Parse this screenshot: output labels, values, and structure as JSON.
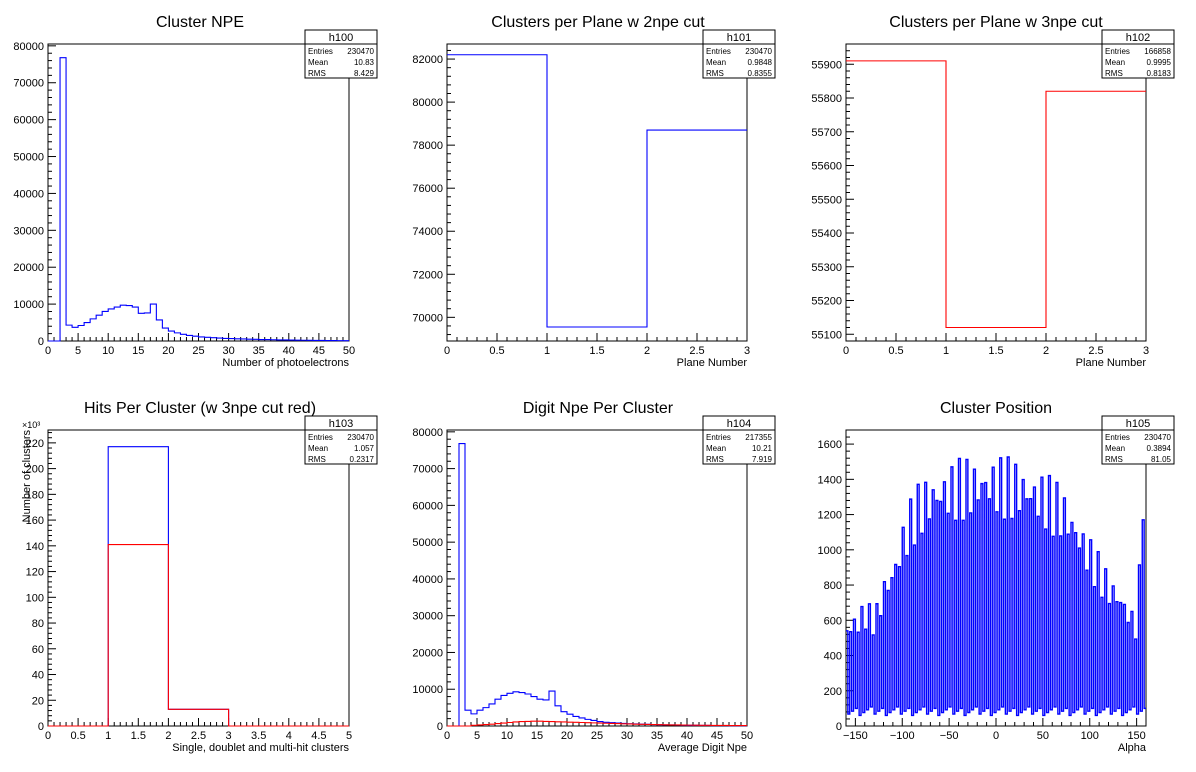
{
  "chart_data": [
    {
      "type": "histogram",
      "title": "Cluster NPE",
      "stats": {
        "name": "h100",
        "entries": "230470",
        "mean": "10.83",
        "rms": "8.429"
      },
      "stat_labels": {
        "entries": "Entries",
        "mean": "Mean",
        "rms": "RMS"
      },
      "xlabel": "Number of photoelectrons",
      "ylabel": "",
      "xlim": [
        0,
        50
      ],
      "ylim": [
        0,
        80500
      ],
      "xticks": [
        0,
        5,
        10,
        15,
        20,
        25,
        30,
        35,
        40,
        45,
        50
      ],
      "yticks": [
        0,
        10000,
        20000,
        30000,
        40000,
        50000,
        60000,
        70000,
        80000
      ],
      "ytick_labels": [
        "0",
        "10000",
        "20000",
        "30000",
        "40000",
        "50000",
        "60000",
        "70000",
        "80000"
      ],
      "ymult": "",
      "series": [
        {
          "color": "#0000ff",
          "bin_edges_start": 2,
          "bin_width": 1,
          "values": [
            76800,
            4300,
            3700,
            4200,
            5000,
            6000,
            7000,
            8000,
            8700,
            9200,
            9700,
            9600,
            9200,
            7500,
            7600,
            10000,
            5700,
            3500,
            2700,
            2200,
            1800,
            1500,
            1300,
            1100,
            1000,
            900,
            800,
            700,
            650,
            600,
            550,
            500,
            450,
            400,
            380,
            340,
            300,
            280,
            250,
            220,
            200,
            180,
            160,
            140,
            130,
            120,
            100,
            90
          ]
        }
      ]
    },
    {
      "type": "histogram",
      "title": "Clusters per Plane w 2npe cut",
      "stats": {
        "name": "h101",
        "entries": "230470",
        "mean": "0.9848",
        "rms": "0.8355"
      },
      "stat_labels": {
        "entries": "Entries",
        "mean": "Mean",
        "rms": "RMS"
      },
      "xlabel": "Plane Number",
      "ylabel": "",
      "xlim": [
        0,
        3
      ],
      "ylim": [
        68900,
        82700
      ],
      "xticks": [
        0,
        0.5,
        1,
        1.5,
        2,
        2.5,
        3
      ],
      "yticks": [
        70000,
        72000,
        74000,
        76000,
        78000,
        80000,
        82000
      ],
      "ytick_labels": [
        "70000",
        "72000",
        "74000",
        "76000",
        "78000",
        "80000",
        "82000"
      ],
      "ymult": "",
      "series": [
        {
          "color": "#0000ff",
          "bin_edges_start": 0,
          "bin_width": 1,
          "values": [
            82200,
            69550,
            78700
          ]
        }
      ]
    },
    {
      "type": "histogram",
      "title": "Clusters per Plane w 3npe cut",
      "stats": {
        "name": "h102",
        "entries": "166858",
        "mean": "0.9995",
        "rms": "0.8183"
      },
      "stat_labels": {
        "entries": "Entries",
        "mean": "Mean",
        "rms": "RMS"
      },
      "xlabel": "Plane Number",
      "ylabel": "",
      "xlim": [
        0,
        3
      ],
      "ylim": [
        55080,
        55960
      ],
      "xticks": [
        0,
        0.5,
        1,
        1.5,
        2,
        2.5,
        3
      ],
      "yticks": [
        55100,
        55200,
        55300,
        55400,
        55500,
        55600,
        55700,
        55800,
        55900
      ],
      "ytick_labels": [
        "55100",
        "55200",
        "55300",
        "55400",
        "55500",
        "55600",
        "55700",
        "55800",
        "55900"
      ],
      "ymult": "",
      "series": [
        {
          "color": "#ff0000",
          "bin_edges_start": 0,
          "bin_width": 1,
          "values": [
            55910,
            55120,
            55820
          ]
        }
      ]
    },
    {
      "type": "histogram",
      "title": "Hits Per Cluster (w 3npe cut red)",
      "stats": {
        "name": "h103",
        "entries": "230470",
        "mean": "1.057",
        "rms": "0.2317"
      },
      "stat_labels": {
        "entries": "Entries",
        "mean": "Mean",
        "rms": "RMS"
      },
      "xlabel": "Single, doublet and multi-hit clusters",
      "ylabel": "Number of clusters",
      "xlim": [
        0,
        5
      ],
      "ylim": [
        0,
        230
      ],
      "xticks": [
        0,
        0.5,
        1,
        1.5,
        2,
        2.5,
        3,
        3.5,
        4,
        4.5,
        5
      ],
      "yticks": [
        0,
        20,
        40,
        60,
        80,
        100,
        120,
        140,
        160,
        180,
        200,
        220
      ],
      "ytick_labels": [
        "0",
        "20",
        "40",
        "60",
        "80",
        "100",
        "120",
        "140",
        "160",
        "180",
        "200",
        "220"
      ],
      "ymult": "×10³",
      "series": [
        {
          "color": "#0000ff",
          "bin_edges_start": 0,
          "bin_width": 1,
          "values": [
            0,
            217,
            13,
            0,
            0
          ]
        },
        {
          "color": "#ff0000",
          "bin_edges_start": 0,
          "bin_width": 1,
          "values": [
            0,
            141,
            13,
            0,
            0
          ]
        }
      ]
    },
    {
      "type": "histogram",
      "title": "Digit Npe Per Cluster",
      "stats": {
        "name": "h104",
        "entries": "217355",
        "mean": "10.21",
        "rms": "7.919"
      },
      "stat_labels": {
        "entries": "Entries",
        "mean": "Mean",
        "rms": "RMS"
      },
      "xlabel": "Average Digit Npe",
      "ylabel": "",
      "xlim": [
        0,
        50
      ],
      "ylim": [
        0,
        80500
      ],
      "xticks": [
        0,
        5,
        10,
        15,
        20,
        25,
        30,
        35,
        40,
        45,
        50
      ],
      "yticks": [
        0,
        10000,
        20000,
        30000,
        40000,
        50000,
        60000,
        70000,
        80000
      ],
      "ytick_labels": [
        "0",
        "10000",
        "20000",
        "30000",
        "40000",
        "50000",
        "60000",
        "70000",
        "80000"
      ],
      "ymult": "",
      "series": [
        {
          "color": "#0000ff",
          "bin_edges_start": 2,
          "bin_width": 1,
          "values": [
            76800,
            4300,
            3300,
            4300,
            5000,
            6000,
            7300,
            8300,
            8900,
            9300,
            9100,
            8700,
            8000,
            7300,
            7100,
            9500,
            5500,
            3900,
            3200,
            2600,
            2200,
            1800,
            1500,
            1200,
            1000,
            900,
            800,
            700,
            600,
            550,
            500,
            450,
            400,
            350,
            300,
            280,
            250,
            220,
            200,
            180,
            160,
            140,
            120,
            110,
            100,
            90,
            80,
            70
          ]
        },
        {
          "color": "#ff0000",
          "bin_edges_start": 2,
          "bin_width": 1,
          "values": [
            0,
            0,
            200,
            300,
            400,
            500,
            650,
            800,
            950,
            1100,
            1200,
            1250,
            1300,
            1300,
            1250,
            1200,
            1150,
            1100,
            1050,
            1000,
            950,
            900,
            850,
            800,
            750,
            700,
            650,
            600,
            550,
            500,
            460,
            420,
            390,
            360,
            330,
            300,
            280,
            260,
            240,
            220,
            200,
            180,
            160,
            150,
            140,
            130,
            120,
            110
          ]
        }
      ]
    },
    {
      "type": "histogram",
      "title": "Cluster Position",
      "stats": {
        "name": "h105",
        "entries": "230470",
        "mean": "0.3894",
        "rms": "81.05"
      },
      "stat_labels": {
        "entries": "Entries",
        "mean": "Mean",
        "rms": "RMS"
      },
      "xlabel": "Alpha",
      "ylabel": "",
      "xlim": [
        -160,
        160
      ],
      "ylim": [
        0,
        1680
      ],
      "xticks": [
        -150,
        -100,
        -50,
        0,
        50,
        100,
        150
      ],
      "xtick_labels": [
        "−150",
        "−100",
        "−50",
        "0",
        "50",
        "100",
        "150"
      ],
      "yticks": [
        0,
        200,
        400,
        600,
        800,
        1000,
        1200,
        1400,
        1600
      ],
      "ytick_labels": [
        "0",
        "200",
        "400",
        "600",
        "800",
        "1000",
        "1200",
        "1400",
        "1600"
      ],
      "ymult": "",
      "series": [
        {
          "color": "#0000ff",
          "style": "oscillating",
          "x_start": -160,
          "bin_width": 2,
          "peak_profile": [
            [
              -160,
              600
            ],
            [
              -150,
              640
            ],
            [
              -140,
              700
            ],
            [
              -130,
              650
            ],
            [
              -120,
              850
            ],
            [
              -110,
              950
            ],
            [
              -100,
              1150
            ],
            [
              -90,
              1300
            ],
            [
              -80,
              1380
            ],
            [
              -70,
              1420
            ],
            [
              -60,
              1450
            ],
            [
              -50,
              1470
            ],
            [
              -40,
              1490
            ],
            [
              -30,
              1500
            ],
            [
              -20,
              1500
            ],
            [
              -10,
              1510
            ],
            [
              0,
              1510
            ],
            [
              10,
              1500
            ],
            [
              20,
              1490
            ],
            [
              30,
              1470
            ],
            [
              40,
              1440
            ],
            [
              50,
              1420
            ],
            [
              60,
              1380
            ],
            [
              70,
              1340
            ],
            [
              80,
              1250
            ],
            [
              90,
              1150
            ],
            [
              100,
              1050
            ],
            [
              110,
              950
            ],
            [
              120,
              850
            ],
            [
              130,
              800
            ],
            [
              140,
              700
            ],
            [
              150,
              600
            ],
            [
              156,
              1500
            ],
            [
              160,
              1500
            ]
          ],
          "trough_value": 60
        }
      ]
    }
  ]
}
